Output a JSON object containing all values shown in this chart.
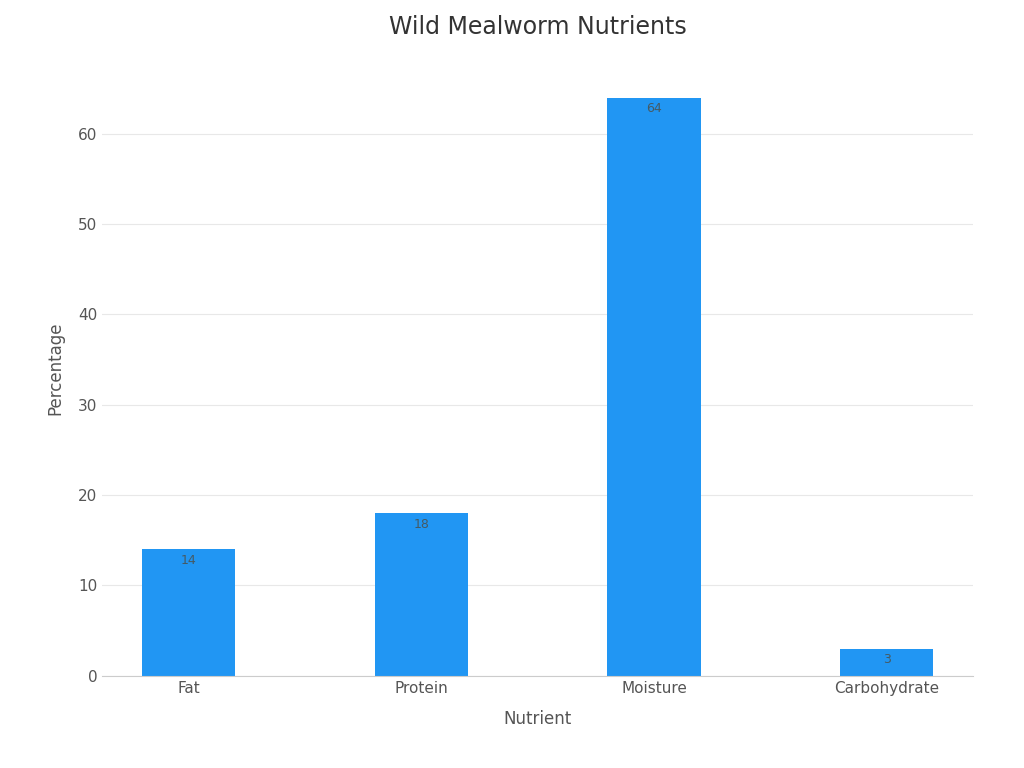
{
  "title": "Wild Mealworm Nutrients",
  "xlabel": "Nutrient",
  "ylabel": "Percentage",
  "categories": [
    "Fat",
    "Protein",
    "Moisture",
    "Carbohydrate"
  ],
  "values": [
    14,
    18,
    64,
    3
  ],
  "bar_color": "#2196F3",
  "label_color": "#455a64",
  "label_fontsize": 9,
  "title_fontsize": 17,
  "axis_label_fontsize": 12,
  "tick_label_fontsize": 11,
  "ylim": [
    0,
    68
  ],
  "yticks": [
    0,
    10,
    20,
    30,
    40,
    50,
    60
  ],
  "background_color": "#ffffff",
  "spine_color": "#cccccc",
  "bar_width": 0.4,
  "grid_color": "#e8e8e8",
  "title_color": "#333333",
  "axis_label_color": "#555555",
  "tick_color": "#555555"
}
